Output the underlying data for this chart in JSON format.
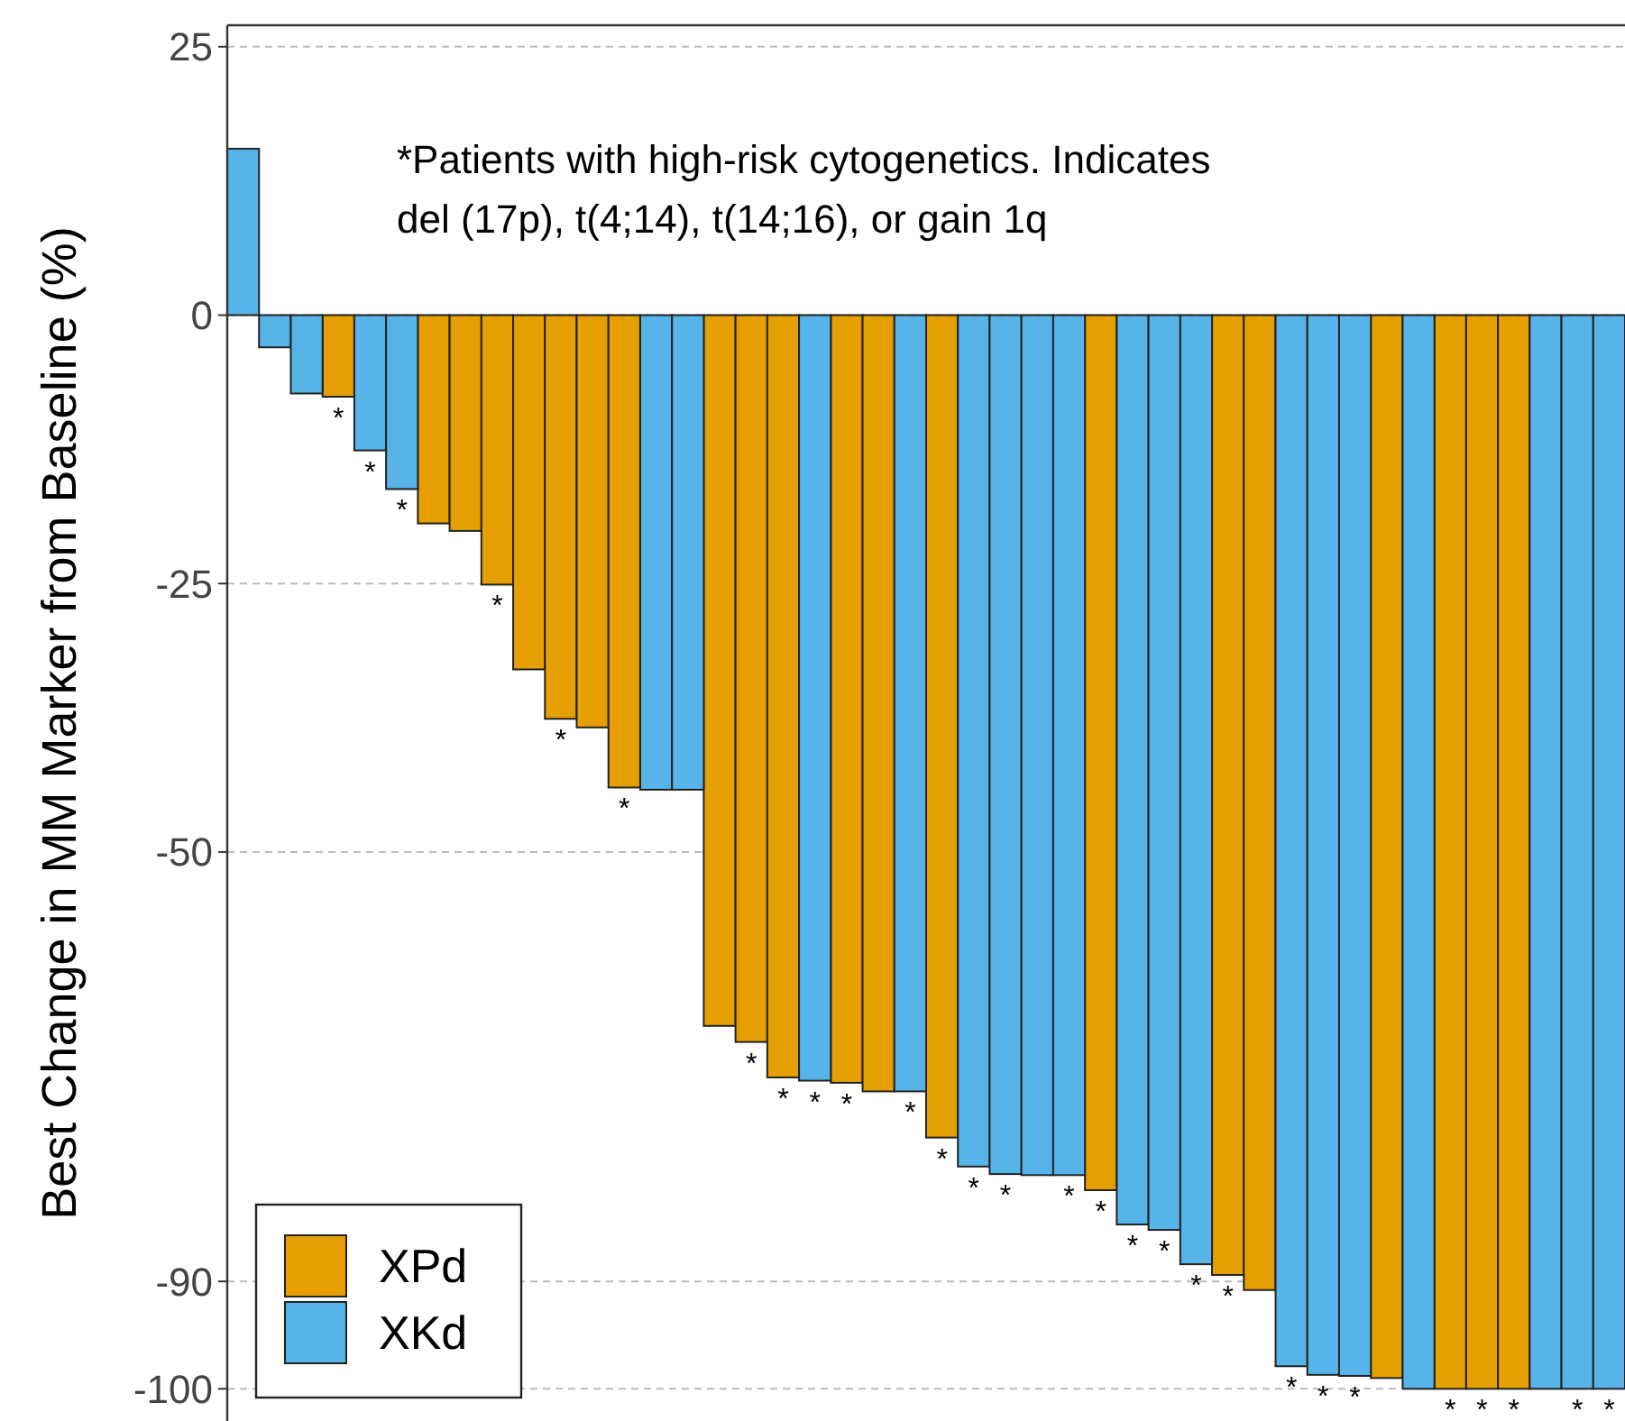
{
  "chart_data": {
    "type": "bar",
    "ylabel": "Best Change in MM Marker from Baseline (%)",
    "annotations": [
      "*Patients with high-risk cytogenetics. Indicates del (17p), t(4;14), t(14;16), or gain 1q"
    ],
    "categories": [
      null,
      null,
      null,
      null,
      null,
      null,
      null,
      null,
      null,
      null,
      null,
      null,
      null,
      null,
      null,
      null,
      null,
      null,
      null,
      null,
      null,
      null,
      null,
      null,
      null,
      null,
      null,
      null,
      null,
      null,
      null,
      null,
      null,
      null,
      null,
      null,
      null,
      null,
      null,
      null,
      null,
      null,
      null,
      null
    ],
    "stacked": true,
    "series": [
      {
        "name": "XPd",
        "color": "#e69f00",
        "values": [
          null,
          null,
          null,
          -7.6,
          null,
          null,
          -19.4,
          -20.1,
          -25.1,
          -33,
          -37.6,
          -38.4,
          -44,
          null,
          null,
          -66.2,
          -67.7,
          -71,
          null,
          -71.5,
          -72.3,
          null,
          -76.6,
          null,
          null,
          null,
          null,
          -81.5,
          null,
          null,
          null,
          -89.4,
          -90.8,
          null,
          null,
          null,
          -99,
          null,
          -100,
          -100,
          -100,
          null,
          null,
          null
        ],
        "value_labels": [
          null,
          null,
          null,
          "*",
          null,
          null,
          null,
          null,
          "*",
          null,
          "*",
          null,
          "*",
          null,
          null,
          null,
          "*",
          "*",
          null,
          "*",
          null,
          null,
          "*",
          null,
          null,
          null,
          null,
          "*",
          null,
          null,
          null,
          "*",
          null,
          null,
          null,
          null,
          null,
          null,
          "*",
          "*",
          "*",
          null,
          null,
          null
        ]
      },
      {
        "name": "XKd",
        "color": "#56b4e9",
        "values": [
          15.5,
          -3,
          -7.3,
          null,
          -12.6,
          -16.2,
          null,
          null,
          null,
          null,
          null,
          null,
          null,
          -44.2,
          -44.2,
          null,
          null,
          null,
          -71.3,
          null,
          null,
          -72.3,
          null,
          -79.3,
          -80,
          -80.1,
          -80.1,
          null,
          -84.7,
          -85.2,
          -88.4,
          null,
          null,
          -97.9,
          -98.7,
          -98.8,
          null,
          -100,
          null,
          null,
          null,
          -100,
          -100,
          -100
        ],
        "value_labels": [
          null,
          null,
          null,
          null,
          "*",
          "*",
          null,
          null,
          null,
          null,
          null,
          null,
          null,
          null,
          null,
          null,
          null,
          null,
          "*",
          null,
          null,
          "*",
          null,
          "*",
          "*",
          null,
          "*",
          null,
          "*",
          "*",
          "*",
          null,
          null,
          "*",
          "*",
          "*",
          null,
          null,
          null,
          null,
          null,
          null,
          "*",
          "*"
        ]
      }
    ],
    "ylim": [
      -103,
      27
    ],
    "yticks": [
      25,
      0,
      -25,
      -50,
      -90,
      -100
    ],
    "grid": "y",
    "legend": "bottom left"
  }
}
